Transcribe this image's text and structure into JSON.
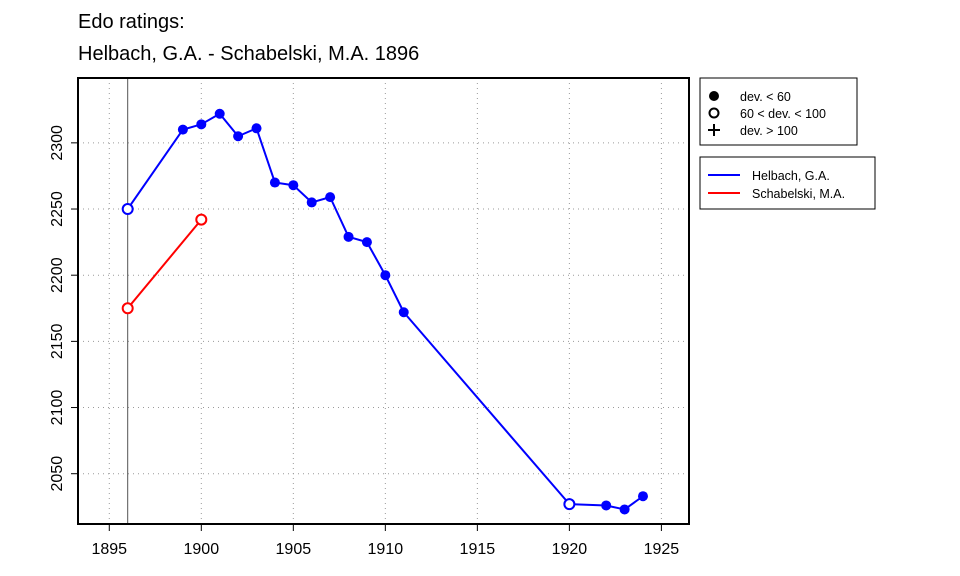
{
  "chart_data": {
    "type": "line",
    "title_lines": [
      "Edo ratings:",
      "Helbach, G.A. - Schabelski, M.A. 1896"
    ],
    "xlabel": "",
    "ylabel": "",
    "xlim": [
      1893.3,
      1926.5
    ],
    "ylim": [
      2012,
      2349
    ],
    "x_ticks": [
      1895,
      1900,
      1905,
      1910,
      1915,
      1920,
      1925
    ],
    "y_ticks": [
      2050,
      2100,
      2150,
      2200,
      2250,
      2300
    ],
    "grid": true,
    "reference_x": 1896,
    "series": [
      {
        "name": "Helbach, G.A.",
        "color": "#0000ff",
        "points": [
          {
            "x": 1896,
            "y": 2250,
            "dev": "mid"
          },
          {
            "x": 1899,
            "y": 2310,
            "dev": "low"
          },
          {
            "x": 1900,
            "y": 2314,
            "dev": "low"
          },
          {
            "x": 1901,
            "y": 2322,
            "dev": "low"
          },
          {
            "x": 1902,
            "y": 2305,
            "dev": "low"
          },
          {
            "x": 1903,
            "y": 2311,
            "dev": "low"
          },
          {
            "x": 1904,
            "y": 2270,
            "dev": "low"
          },
          {
            "x": 1905,
            "y": 2268,
            "dev": "low"
          },
          {
            "x": 1906,
            "y": 2255,
            "dev": "low"
          },
          {
            "x": 1907,
            "y": 2259,
            "dev": "low"
          },
          {
            "x": 1908,
            "y": 2229,
            "dev": "low"
          },
          {
            "x": 1909,
            "y": 2225,
            "dev": "low"
          },
          {
            "x": 1910,
            "y": 2200,
            "dev": "low"
          },
          {
            "x": 1911,
            "y": 2172,
            "dev": "low"
          },
          {
            "x": 1920,
            "y": 2027,
            "dev": "mid"
          },
          {
            "x": 1922,
            "y": 2026,
            "dev": "low"
          },
          {
            "x": 1923,
            "y": 2023,
            "dev": "low"
          },
          {
            "x": 1924,
            "y": 2033,
            "dev": "low"
          }
        ]
      },
      {
        "name": "Schabelski, M.A.",
        "color": "#ff0000",
        "points": [
          {
            "x": 1896,
            "y": 2175,
            "dev": "mid"
          },
          {
            "x": 1900,
            "y": 2242,
            "dev": "mid"
          }
        ]
      }
    ],
    "legend_symbols": [
      {
        "symbol": "filled-circle",
        "label": "dev. < 60"
      },
      {
        "symbol": "open-circle",
        "label": "60 < dev. < 100"
      },
      {
        "symbol": "plus",
        "label": "dev. > 100"
      }
    ]
  }
}
